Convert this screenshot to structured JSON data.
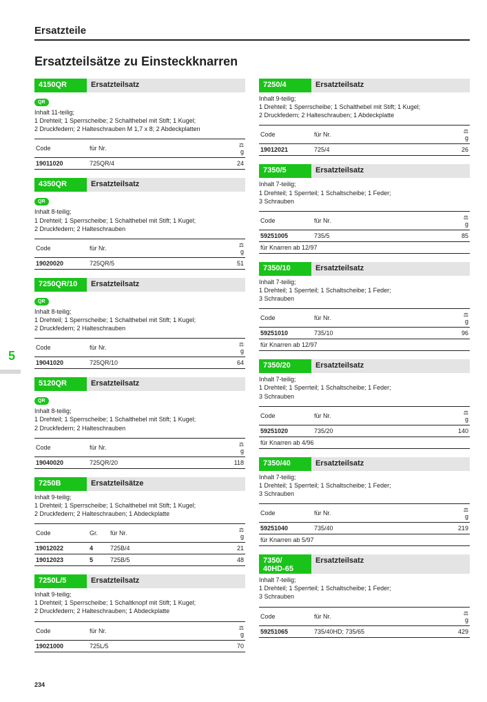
{
  "page": {
    "breadcrumb": "Ersatzteile",
    "title": "Ersatzteilsätze zu Einsteckknarren",
    "page_number": "234",
    "side_marker": "5"
  },
  "labels": {
    "code": "Code",
    "gr": "Gr.",
    "fuerNr": "für Nr.",
    "weight_unit": "g",
    "weight_icon": "⚖"
  },
  "colors": {
    "accent": "#1ac31a",
    "grey": "#e4e4e4",
    "text": "#222222",
    "bg": "#ffffff"
  },
  "left": [
    {
      "code_title": "4150QR",
      "subtitle": "Ersatzteilsatz",
      "qr": true,
      "desc": "Inhalt 11-teilig;\n1 Drehteil; 1 Sperrscheibe; 2 Schalthebel mit Stift; 1 Kugel;\n2 Druckfedern; 2 Halteschrauben M 1,7 x 8; 2 Abdeckplatten",
      "rows": [
        {
          "code": "19011020",
          "fuer": "725QR/4",
          "g": "24"
        }
      ]
    },
    {
      "code_title": "4350QR",
      "subtitle": "Ersatzteilsatz",
      "qr": true,
      "desc": "Inhalt 8-teilig;\n1 Drehteil; 1 Sperrscheibe; 1 Schalthebel mit Stift; 1 Kugel;\n2 Druckfedern; 2 Halteschrauben",
      "rows": [
        {
          "code": "19020020",
          "fuer": "725QR/5",
          "g": "51"
        }
      ]
    },
    {
      "code_title": "7250QR/10",
      "subtitle": "Ersatzteilsatz",
      "qr": true,
      "desc": "Inhalt 8-teilig;\n1 Drehteil; 1 Sperrscheibe; 1 Schalthebel mit Stift; 1 Kugel;\n2 Druckfedern; 2 Halteschrauben",
      "rows": [
        {
          "code": "19041020",
          "fuer": "725QR/10",
          "g": "64"
        }
      ]
    },
    {
      "code_title": "5120QR",
      "subtitle": "Ersatzteilsatz",
      "qr": true,
      "desc": "Inhalt 8-teilig;\n1 Drehteil; 1 Sperrscheibe; 1 Schalthebel mit Stift; 1 Kugel;\n2 Druckfedern; 2 Halteschrauben",
      "rows": [
        {
          "code": "19040020",
          "fuer": "725QR/20",
          "g": "118"
        }
      ]
    },
    {
      "code_title": "7250B",
      "subtitle": "Ersatzteilsätze",
      "qr": false,
      "desc": "Inhalt 9-teilig;\n1 Drehteil; 1 Sperrscheibe; 1 Schalthebel mit Stift; 1 Kugel;\n2 Druckfedern; 2 Halteschrauben; 1 Abdeckplatte",
      "has_gr": true,
      "rows": [
        {
          "code": "19012022",
          "gr": "4",
          "fuer": "725B/4",
          "g": "21"
        },
        {
          "code": "19012023",
          "gr": "5",
          "fuer": "725B/5",
          "g": "48"
        }
      ]
    },
    {
      "code_title": "7250L/5",
      "subtitle": "Ersatzteilsatz",
      "qr": false,
      "desc": "Inhalt 9-teilig;\n1 Drehteil; 1 Sperrscheibe; 1 Schaltknopf mit Stift; 1 Kugel;\n2 Druckfedern; 2 Halteschrauben; 1 Abdeckplatte",
      "rows": [
        {
          "code": "19021000",
          "fuer": "725L/5",
          "g": "70"
        }
      ]
    }
  ],
  "right": [
    {
      "code_title": "7250/4",
      "subtitle": "Ersatzteilsatz",
      "desc": "Inhalt 9-teilig;\n1 Drehteil; 1 Sperrscheibe; 1 Schalthebel mit Stift; 1 Kugel;\n2 Druckfedern; 2 Halteschrauben; 1 Abdeckplatte",
      "rows": [
        {
          "code": "19012021",
          "fuer": "725/4",
          "g": "26"
        }
      ]
    },
    {
      "code_title": "7350/5",
      "subtitle": "Ersatzteilsatz",
      "desc": "Inhalt 7-teilig;\n1 Drehteil; 1 Sperrteil; 1 Schaltscheibe; 1 Feder;\n3 Schrauben",
      "rows": [
        {
          "code": "59251005",
          "fuer": "735/5",
          "g": "85"
        }
      ],
      "note": "für Knarren ab 12/97"
    },
    {
      "code_title": "7350/10",
      "subtitle": "Ersatzteilsatz",
      "desc": "Inhalt 7-teilig;\n1 Drehteil; 1 Sperrteil; 1 Schaltscheibe; 1 Feder;\n3 Schrauben",
      "rows": [
        {
          "code": "59251010",
          "fuer": "735/10",
          "g": "96"
        }
      ],
      "note": "für Knarren ab 12/97"
    },
    {
      "code_title": "7350/20",
      "subtitle": "Ersatzteilsatz",
      "desc": "Inhalt 7-teilig;\n1 Drehteil; 1 Sperrteil; 1 Schaltscheibe; 1 Feder;\n3 Schrauben",
      "rows": [
        {
          "code": "59251020",
          "fuer": "735/20",
          "g": "140"
        }
      ],
      "note": "für Knarren ab 4/96"
    },
    {
      "code_title": "7350/40",
      "subtitle": "Ersatzteilsatz",
      "desc": "Inhalt 7-teilig;\n1 Drehteil; 1 Sperrteil; 1 Schaltscheibe; 1 Feder;\n3 Schrauben",
      "rows": [
        {
          "code": "59251040",
          "fuer": "735/40",
          "g": "219"
        }
      ],
      "note": "für Knarren ab 5/97"
    },
    {
      "code_title": "7350/\n40HD-65",
      "subtitle": "Ersatzteilsatz",
      "tall": true,
      "desc": "Inhalt 7-teilig;\n1 Drehteil; 1 Sperrteil; 1 Schaltscheibe; 1 Feder;\n3 Schrauben",
      "rows": [
        {
          "code": "59251065",
          "fuer": "735/40HD; 735/65",
          "g": "429"
        }
      ]
    }
  ]
}
